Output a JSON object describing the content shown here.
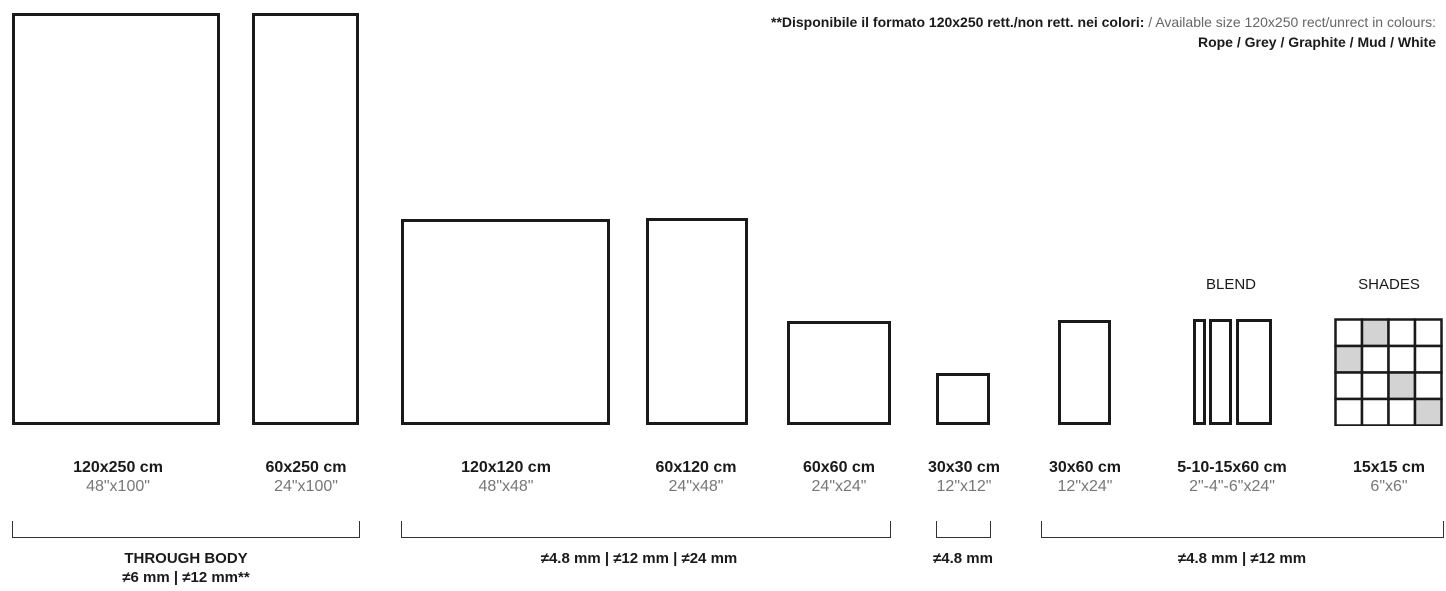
{
  "note": {
    "line1_bold": "**Disponibile il formato 120x250 rett./non rett. nei colori:",
    "line1_light": " / Available size 120x250 rect/unrect in colours:",
    "line2": "Rope / Grey / Graphite / Mud / White"
  },
  "headers": {
    "blend": "BLEND",
    "shades": "SHADES"
  },
  "sizes": [
    {
      "cm": "120x250 cm",
      "in": "48\"x100\""
    },
    {
      "cm": "60x250 cm",
      "in": "24\"x100\""
    },
    {
      "cm": "120x120 cm",
      "in": "48\"x48\""
    },
    {
      "cm": "60x120 cm",
      "in": "24\"x48\""
    },
    {
      "cm": "60x60 cm",
      "in": "24\"x24\""
    },
    {
      "cm": "30x30 cm",
      "in": "12\"x12\""
    },
    {
      "cm": "30x60 cm",
      "in": "12\"x24\""
    },
    {
      "cm": "5-10-15x60 cm",
      "in": "2\"-4\"-6\"x24\""
    },
    {
      "cm": "15x15 cm",
      "in": "6\"x6\""
    }
  ],
  "groups": [
    {
      "line1": "THROUGH BODY",
      "line2": "≠6 mm | ≠12 mm**"
    },
    {
      "line1": "≠4.8 mm | ≠12 mm | ≠24 mm",
      "line2": ""
    },
    {
      "line1": "≠4.8 mm",
      "line2": ""
    },
    {
      "line1": "≠4.8 mm | ≠12 mm",
      "line2": ""
    }
  ],
  "shades_highlight": [
    [
      0,
      1
    ],
    [
      1,
      0
    ],
    [
      2,
      2
    ],
    [
      3,
      3
    ]
  ],
  "colors": {
    "stroke": "#1a1a1a",
    "shade_fill": "#d3d3d3"
  }
}
